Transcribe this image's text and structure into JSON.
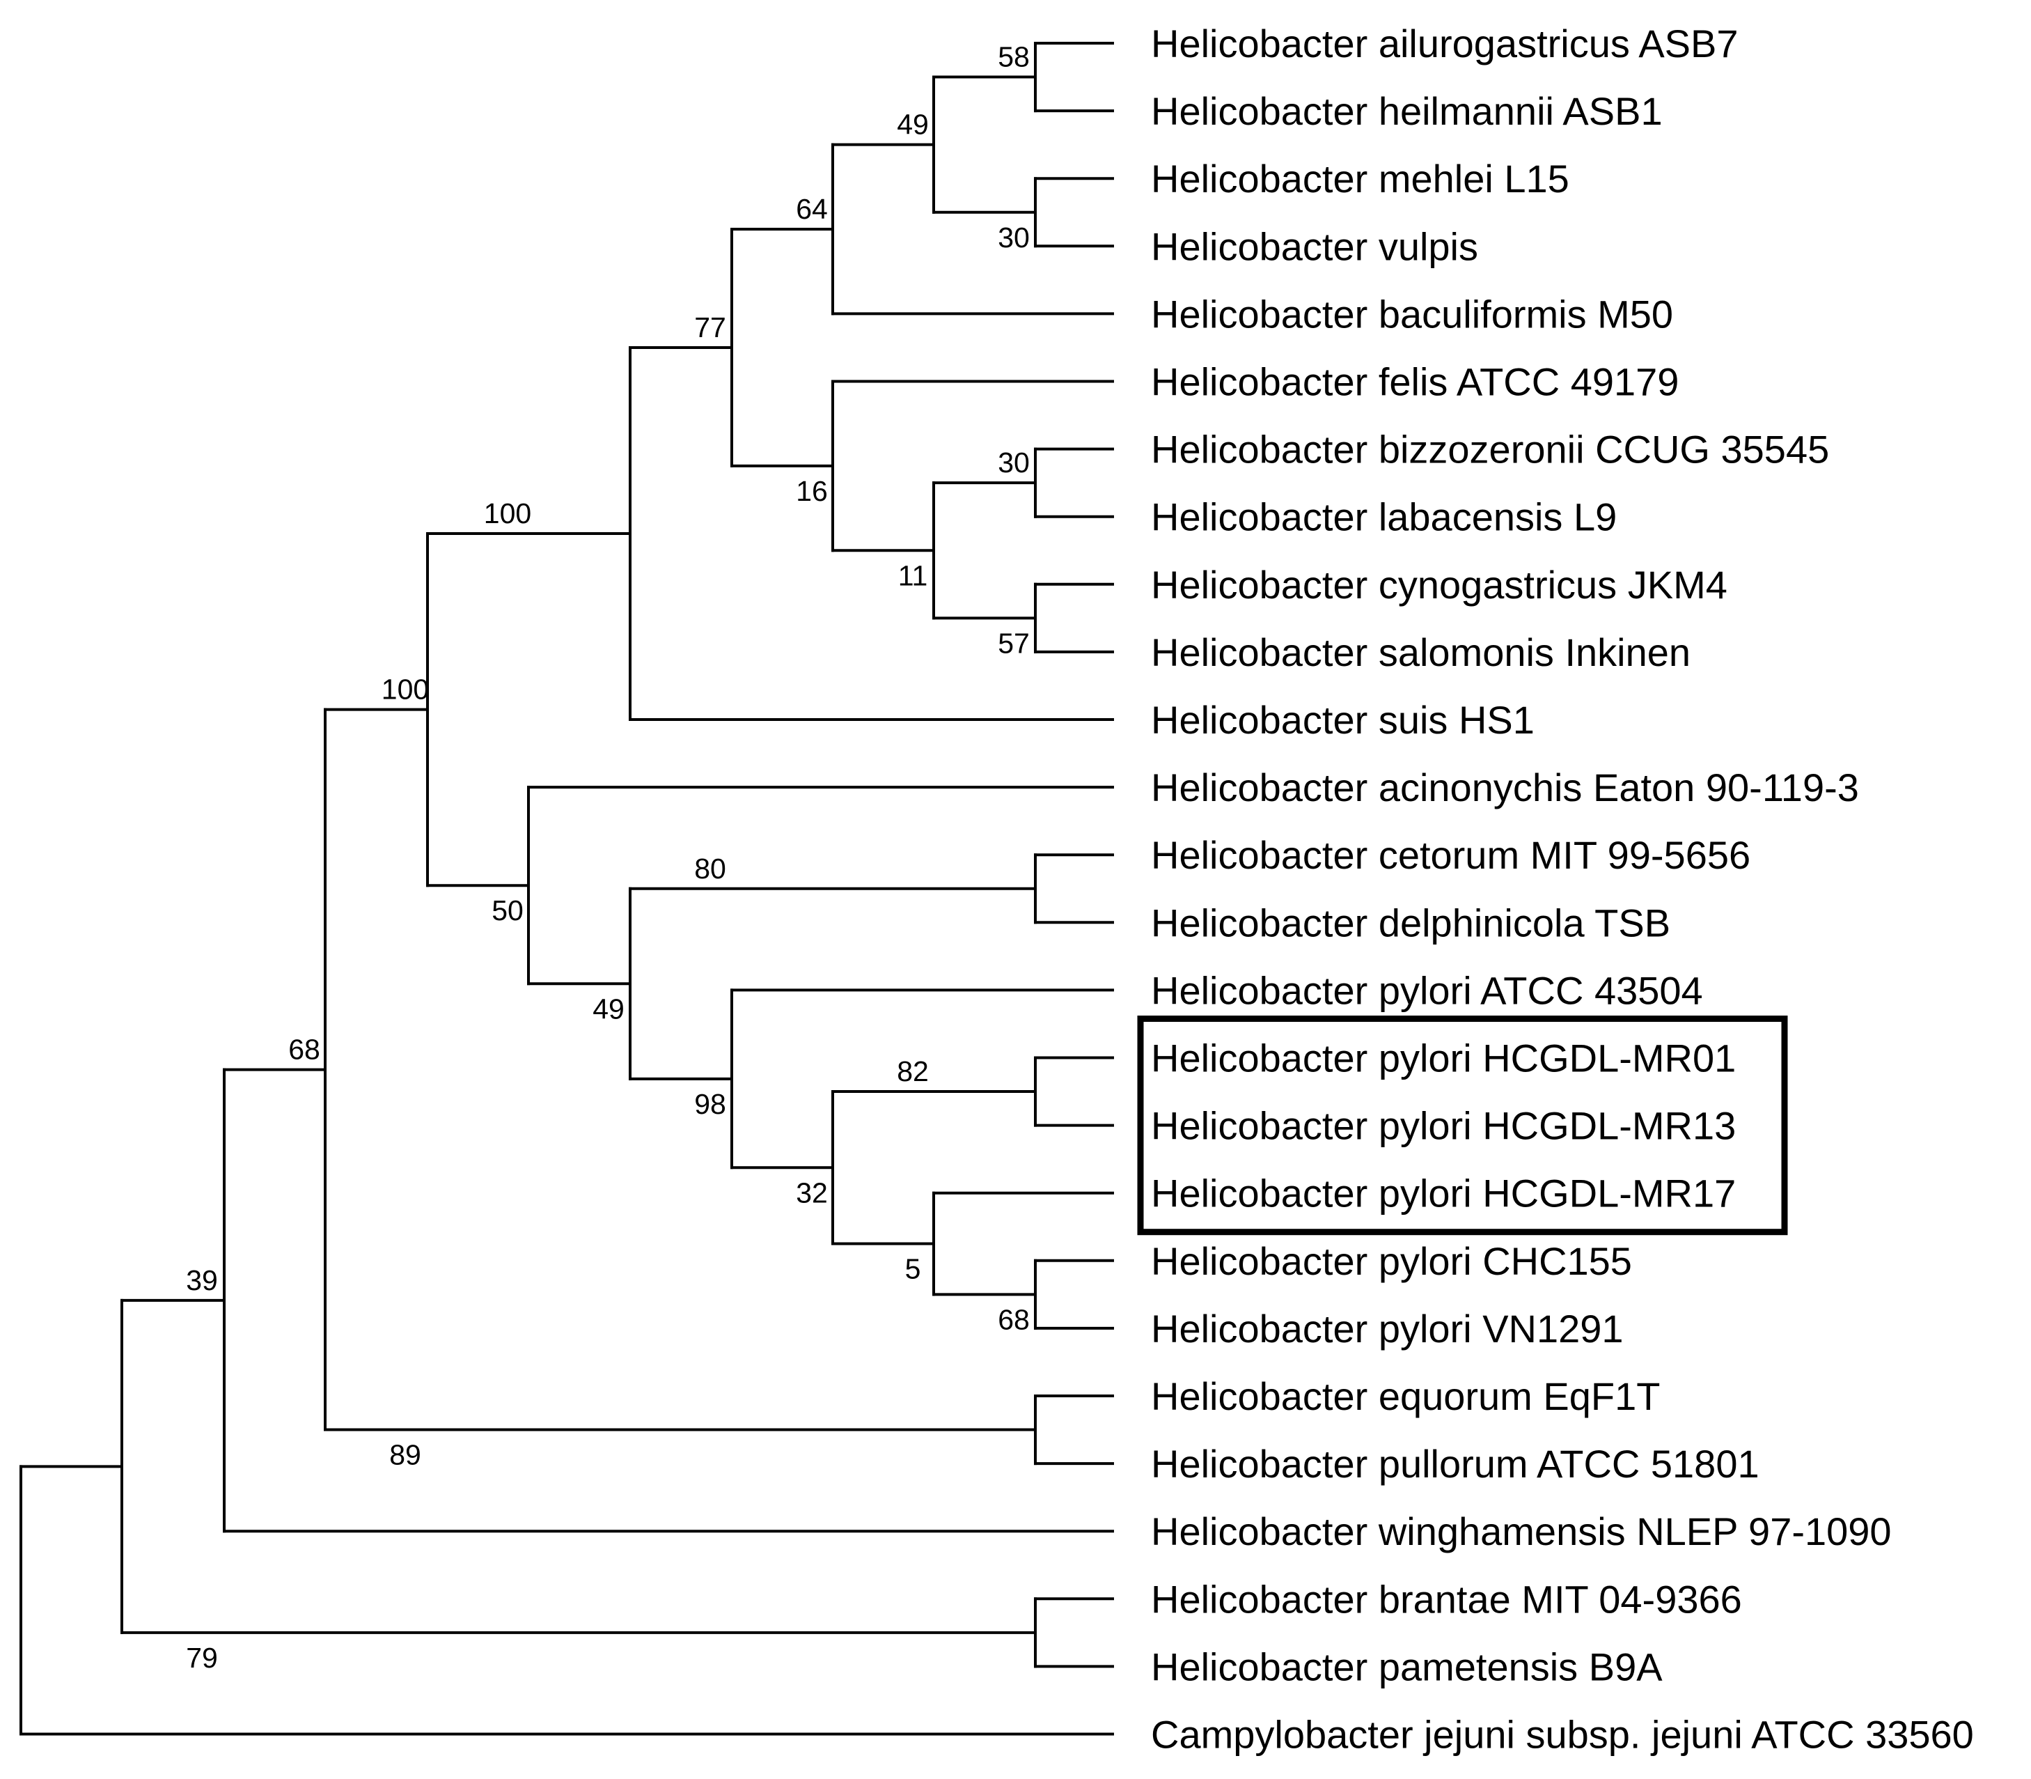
{
  "tree": {
    "taxa": [
      {
        "id": "t0",
        "label": "Helicobacter ailurogastricus ASB7"
      },
      {
        "id": "t1",
        "label": "Helicobacter heilmannii ASB1"
      },
      {
        "id": "t2",
        "label": "Helicobacter mehlei L15"
      },
      {
        "id": "t3",
        "label": "Helicobacter vulpis"
      },
      {
        "id": "t4",
        "label": "Helicobacter baculiformis M50"
      },
      {
        "id": "t5",
        "label": "Helicobacter felis ATCC 49179"
      },
      {
        "id": "t6",
        "label": "Helicobacter bizzozeronii CCUG 35545"
      },
      {
        "id": "t7",
        "label": "Helicobacter labacensis L9"
      },
      {
        "id": "t8",
        "label": "Helicobacter cynogastricus JKM4"
      },
      {
        "id": "t9",
        "label": "Helicobacter salomonis Inkinen"
      },
      {
        "id": "t10",
        "label": "Helicobacter suis HS1"
      },
      {
        "id": "t11",
        "label": "Helicobacter acinonychis Eaton 90-119-3"
      },
      {
        "id": "t12",
        "label": "Helicobacter cetorum MIT 99-5656"
      },
      {
        "id": "t13",
        "label": "Helicobacter delphinicola TSB"
      },
      {
        "id": "t14",
        "label": "Helicobacter pylori ATCC 43504"
      },
      {
        "id": "t15",
        "label": "Helicobacter pylori HCGDL-MR01"
      },
      {
        "id": "t16",
        "label": "Helicobacter pylori HCGDL-MR13"
      },
      {
        "id": "t17",
        "label": "Helicobacter pylori HCGDL-MR17"
      },
      {
        "id": "t18",
        "label": "Helicobacter pylori CHC155"
      },
      {
        "id": "t19",
        "label": "Helicobacter pylori VN1291"
      },
      {
        "id": "t20",
        "label": "Helicobacter equorum EqF1T"
      },
      {
        "id": "t21",
        "label": "Helicobacter pullorum ATCC 51801"
      },
      {
        "id": "t22",
        "label": "Helicobacter winghamensis NLEP 97-1090"
      },
      {
        "id": "t23",
        "label": "Helicobacter brantae MIT 04-9366"
      },
      {
        "id": "t24",
        "label": "Helicobacter pametensis B9A"
      },
      {
        "id": "t25",
        "label": "Campylobacter jejuni subsp. jejuni ATCC 33560"
      }
    ],
    "nodes": [
      {
        "id": "n1",
        "children": [
          "t0",
          "t1"
        ],
        "support": "58"
      },
      {
        "id": "n2",
        "children": [
          "t2",
          "t3"
        ],
        "support": "30"
      },
      {
        "id": "n3",
        "children": [
          "n1",
          "n2"
        ],
        "support": "49"
      },
      {
        "id": "n4",
        "children": [
          "n3",
          "t4"
        ],
        "support": "64"
      },
      {
        "id": "n5",
        "children": [
          "t6",
          "t7"
        ],
        "support": "30"
      },
      {
        "id": "n6",
        "children": [
          "t8",
          "t9"
        ],
        "support": "57"
      },
      {
        "id": "n7",
        "children": [
          "n5",
          "n6"
        ],
        "support": "11"
      },
      {
        "id": "n8",
        "children": [
          "t5",
          "n7"
        ],
        "support": "16"
      },
      {
        "id": "n9",
        "children": [
          "n4",
          "n8"
        ],
        "support": "77"
      },
      {
        "id": "n10",
        "children": [
          "n9",
          "t10"
        ],
        "support": "100"
      },
      {
        "id": "n11",
        "children": [
          "t12",
          "t13"
        ],
        "support": "80"
      },
      {
        "id": "n12",
        "children": [
          "t15",
          "t16"
        ],
        "support": "82"
      },
      {
        "id": "n13",
        "children": [
          "t18",
          "t19"
        ],
        "support": "68"
      },
      {
        "id": "n14",
        "children": [
          "t17",
          "n13"
        ],
        "support": "5"
      },
      {
        "id": "n15",
        "children": [
          "n12",
          "n14"
        ],
        "support": "32"
      },
      {
        "id": "n16",
        "children": [
          "t14",
          "n15"
        ],
        "support": "98"
      },
      {
        "id": "n17",
        "children": [
          "n11",
          "n16"
        ],
        "support": "49"
      },
      {
        "id": "n18",
        "children": [
          "t11",
          "n17"
        ],
        "support": "50"
      },
      {
        "id": "n19",
        "children": [
          "n10",
          "n18"
        ],
        "support": "100"
      },
      {
        "id": "n20",
        "children": [
          "t20",
          "t21"
        ],
        "support": "89"
      },
      {
        "id": "n21",
        "children": [
          "n19",
          "n20"
        ],
        "support": "68"
      },
      {
        "id": "n22",
        "children": [
          "n21",
          "t22"
        ],
        "support": "39"
      },
      {
        "id": "n23",
        "children": [
          "t23",
          "t24"
        ],
        "support": "79"
      },
      {
        "id": "n24",
        "children": [
          "n22",
          "n23"
        ],
        "support": ""
      },
      {
        "id": "n25",
        "children": [
          "n24",
          "t25"
        ],
        "support": ""
      }
    ],
    "root": "n25",
    "highlighted_taxa": [
      "t15",
      "t16",
      "t17"
    ]
  }
}
